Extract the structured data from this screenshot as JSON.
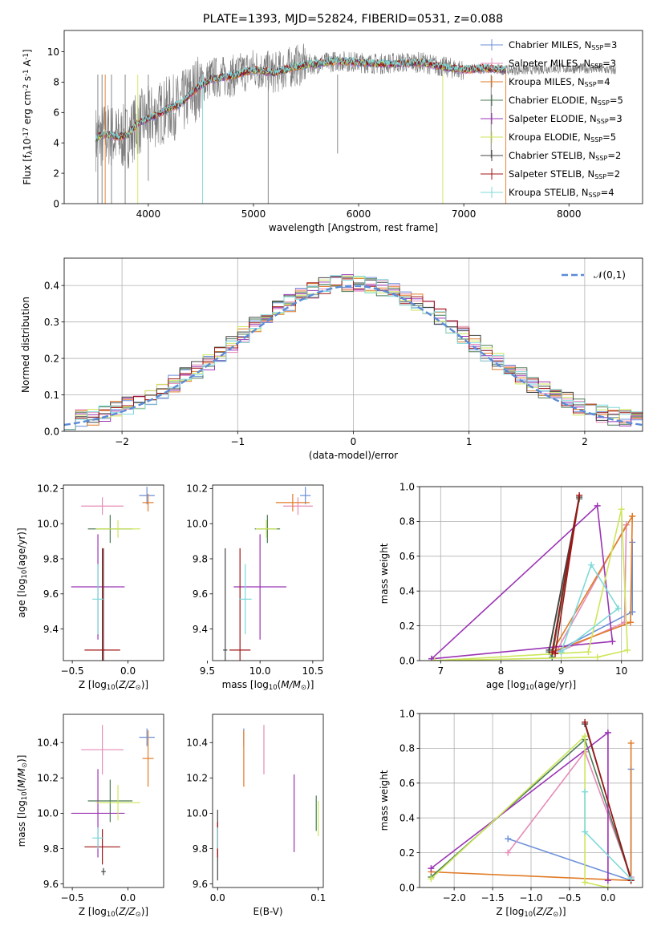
{
  "figure_title": "PLATE=1393, MJD=52824, FIBERID=0531, z=0.088",
  "colors": {
    "chabrier_miles": "#6a8fd9",
    "salpeter_miles": "#e68cb8",
    "kroupa_miles": "#e07b27",
    "chabrier_elodie": "#4a7a55",
    "salpeter_elodie": "#9b34b4",
    "kroupa_elodie": "#cde65a",
    "chabrier_stelib": "#444444",
    "salpeter_stelib": "#a01414",
    "kroupa_stelib": "#7fd9d9",
    "gaussian": "#5b8bd8",
    "data_spectrum": "#7a7a7a"
  },
  "legend_models": [
    "Chabrier MILES, N$_{SSP}$=3",
    "Salpeter MILES, N$_{SSP}$=3",
    "Kroupa MILES, N$_{SSP}$=4",
    "Chabrier ELODIE, N$_{SSP}$=5",
    "Salpeter ELODIE, N$_{SSP}$=3",
    "Kroupa ELODIE, N$_{SSP}$=5",
    "Chabrier STELIB, N$_{SSP}$=2",
    "Salpeter STELIB, N$_{SSP}$=2",
    "Kroupa STELIB, N$_{SSP}$=4"
  ],
  "chart_data": [
    {
      "id": "spectrum",
      "type": "line",
      "title": "PLATE=1393, MJD=52824, FIBERID=0531, z=0.088",
      "xlabel": "wavelength [Angstrom, rest frame]",
      "ylabel": "Flux [f$_\\lambda$10$^{-17}$ erg cm$^{-2}$ s$^{-1}$ A$^{-1}$]",
      "xlim": [
        3200,
        8700
      ],
      "ylim": [
        0,
        11.4
      ],
      "xticks": [
        4000,
        5000,
        6000,
        7000,
        8000
      ],
      "yticks": [
        0,
        2,
        4,
        6,
        8,
        10
      ],
      "legend_position": "upper right",
      "grid": false,
      "data_continuum": {
        "x": [
          3500,
          3600,
          3700,
          3800,
          3900,
          4000,
          4100,
          4200,
          4300,
          4400,
          4500,
          4600,
          4800,
          5000,
          5200,
          5400,
          5600,
          5800,
          6000,
          6200,
          6400,
          6600,
          6800,
          7000,
          7200,
          7400,
          7600,
          7800,
          8000,
          8200,
          8400
        ],
        "y": [
          4.3,
          4.6,
          4.3,
          4.4,
          5.3,
          5.6,
          5.9,
          6.3,
          6.4,
          7.2,
          7.9,
          8.3,
          8.4,
          8.9,
          8.6,
          9.1,
          9.2,
          9.4,
          9.3,
          9.2,
          9.3,
          9.3,
          9.0,
          8.8,
          8.9,
          8.8,
          8.8,
          8.9,
          8.9,
          8.9,
          8.8
        ]
      },
      "model_continuum": {
        "x": [
          3500,
          3600,
          3700,
          3800,
          3900,
          4000,
          4100,
          4200,
          4300,
          4400,
          4500,
          4600,
          4800,
          5000,
          5200,
          5400,
          5600,
          5800,
          6000,
          6200,
          6400,
          6600,
          6800,
          7000,
          7200,
          7400
        ],
        "y": [
          4.3,
          4.6,
          4.4,
          4.5,
          5.3,
          5.6,
          5.9,
          6.3,
          6.5,
          7.2,
          7.8,
          8.2,
          8.4,
          8.8,
          8.6,
          9.0,
          9.2,
          9.4,
          9.3,
          9.2,
          9.2,
          9.3,
          9.0,
          8.8,
          8.9,
          8.8
        ]
      },
      "spikes": [
        {
          "x": 3520,
          "y": 0,
          "color": "#7a7a7a"
        },
        {
          "x": 3560,
          "y": 0,
          "color": "#7a7a7a"
        },
        {
          "x": 3590,
          "y": 0,
          "color": "#e07b27"
        },
        {
          "x": 3650,
          "y": 0,
          "color": "#7a7a7a"
        },
        {
          "x": 3780,
          "y": 0,
          "color": "#7a7a7a"
        },
        {
          "x": 3900,
          "y": 0,
          "color": "#cde65a"
        },
        {
          "x": 4000,
          "y": 1.5,
          "color": "#7a7a7a"
        },
        {
          "x": 4516,
          "y": 0,
          "color": "#7fd9d9"
        },
        {
          "x": 5140,
          "y": 0,
          "color": "#7a7a7a"
        },
        {
          "x": 5800,
          "y": 3.3,
          "color": "#7a7a7a"
        },
        {
          "x": 6800,
          "y": 0,
          "color": "#cde65a"
        },
        {
          "x": 7260,
          "y": 3.0,
          "color": "#7a7a7a"
        },
        {
          "x": 7400,
          "y": 0,
          "color": "#e07b27"
        }
      ]
    },
    {
      "id": "residuals",
      "type": "histogram",
      "xlabel": "(data-model)/error",
      "ylabel": "Normed distribution",
      "xlim": [
        -2.5,
        2.5
      ],
      "ylim": [
        0,
        0.475
      ],
      "xticks": [
        -2,
        -1,
        0,
        1,
        2
      ],
      "yticks": [
        0.0,
        0.1,
        0.2,
        0.3,
        0.4
      ],
      "grid": true,
      "legend_position": "upper right",
      "reference_curve": {
        "name": "$\\mathcal{N}(0,1)$",
        "mean": 0,
        "sigma": 1
      },
      "bin_width": 0.1,
      "bin_start": -2.5,
      "base_values": [
        0.021,
        0.024,
        0.028,
        0.033,
        0.038,
        0.044,
        0.051,
        0.06,
        0.068,
        0.081,
        0.091,
        0.105,
        0.116,
        0.132,
        0.151,
        0.175,
        0.185,
        0.21,
        0.228,
        0.248,
        0.262,
        0.281,
        0.297,
        0.324,
        0.325,
        0.349,
        0.354,
        0.368,
        0.379,
        0.387,
        0.4,
        0.391,
        0.401,
        0.41,
        0.396,
        0.405,
        0.401,
        0.391,
        0.366,
        0.359,
        0.35,
        0.325,
        0.316,
        0.3,
        0.279,
        0.263,
        0.247,
        0.231,
        0.212,
        0.191,
        0.177,
        0.16,
        0.146,
        0.13,
        0.115,
        0.102,
        0.092,
        0.08,
        0.07,
        0.061,
        0.052,
        0.046,
        0.04,
        0.034,
        0.03,
        0.026,
        0.023,
        0.02,
        0.018,
        0.016,
        0.015,
        0.013,
        0.012,
        0.011,
        0.01,
        0.009,
        0.008,
        0.008,
        0.007,
        0.007,
        0.006,
        0.006,
        0.005,
        0.005,
        0.005,
        0.004,
        0.004,
        0.004,
        0.004,
        0.003,
        0.003,
        0.003,
        0.003,
        0.003,
        0.003,
        0.003,
        0.003,
        0.003,
        0.003,
        0.003
      ]
    },
    {
      "id": "age_vs_Z",
      "type": "errorbar",
      "xlabel": "Z [log$_{10}$($Z/Z_\\odot$)]",
      "ylabel": "age  [log$_{10}$($age/yr$)]",
      "xlim": [
        -0.58,
        0.32
      ],
      "ylim": [
        9.22,
        10.22
      ],
      "xticks": [
        -0.5,
        0.0
      ],
      "yticks": [
        9.4,
        9.6,
        9.8,
        10.0,
        10.2
      ],
      "grid": false,
      "points": [
        {
          "model": 0,
          "x": 0.17,
          "y": 10.16,
          "xerr": 0.07,
          "yerr": 0.05
        },
        {
          "model": 1,
          "x": -0.23,
          "y": 10.1,
          "xerr": 0.19,
          "yerr": 0.05
        },
        {
          "model": 2,
          "x": 0.18,
          "y": 10.12,
          "xerr": 0.05,
          "yerr": 0.05
        },
        {
          "model": 3,
          "x": -0.16,
          "y": 9.97,
          "xerr": 0.2,
          "yerr": 0.08
        },
        {
          "model": 4,
          "x": -0.27,
          "y": 9.64,
          "xerr": 0.24,
          "yerr": 0.3
        },
        {
          "model": 5,
          "x": -0.09,
          "y": 9.97,
          "xerr": 0.2,
          "yerr": 0.05
        },
        {
          "model": 6,
          "x": -0.22,
          "y": 9.28,
          "xerr": 0.02,
          "yerr": 0.58
        },
        {
          "model": 7,
          "x": -0.23,
          "y": 9.28,
          "xerr": 0.16,
          "yerr": 0.58
        },
        {
          "model": 8,
          "x": -0.27,
          "y": 9.57,
          "xerr": 0.05,
          "yerr": 0.2
        }
      ]
    },
    {
      "id": "age_vs_mass",
      "type": "errorbar",
      "xlabel": "mass [log$_{10}$($M/M_\\odot$)]",
      "ylabel": "",
      "xlim": [
        9.55,
        10.6
      ],
      "ylim": [
        9.22,
        10.22
      ],
      "xticks": [
        9.5,
        10.0,
        10.5
      ],
      "yticks": [
        9.4,
        9.6,
        9.8,
        10.0,
        10.2
      ],
      "grid": false,
      "points": [
        {
          "model": 0,
          "x": 10.43,
          "y": 10.16,
          "xerr": 0.05,
          "yerr": 0.05
        },
        {
          "model": 1,
          "x": 10.36,
          "y": 10.1,
          "xerr": 0.14,
          "yerr": 0.05
        },
        {
          "model": 2,
          "x": 10.31,
          "y": 10.12,
          "xerr": 0.16,
          "yerr": 0.05
        },
        {
          "model": 3,
          "x": 10.07,
          "y": 9.97,
          "xerr": 0.12,
          "yerr": 0.08
        },
        {
          "model": 4,
          "x": 10.0,
          "y": 9.64,
          "xerr": 0.25,
          "yerr": 0.3
        },
        {
          "model": 5,
          "x": 10.06,
          "y": 9.97,
          "xerr": 0.1,
          "yerr": 0.05
        },
        {
          "model": 6,
          "x": 9.67,
          "y": 9.28,
          "xerr": 0.02,
          "yerr": 0.58
        },
        {
          "model": 7,
          "x": 9.81,
          "y": 9.28,
          "xerr": 0.1,
          "yerr": 0.58
        },
        {
          "model": 8,
          "x": 9.86,
          "y": 9.57,
          "xerr": 0.06,
          "yerr": 0.2
        }
      ]
    },
    {
      "id": "weight_vs_age",
      "type": "line",
      "xlabel": "age  [log$_{10}$($age/yr$)]",
      "ylabel": "mass weight",
      "xlim": [
        6.65,
        10.35
      ],
      "ylim": [
        0,
        1.0
      ],
      "xticks": [
        7,
        8,
        9,
        10
      ],
      "yticks": [
        0.0,
        0.2,
        0.4,
        0.6,
        0.8,
        1.0
      ],
      "grid": true,
      "series": [
        {
          "model": 0,
          "x": [
            10.18,
            10.18,
            8.95,
            10.18
          ],
          "y": [
            0.68,
            0.28,
            0.06,
            0.28
          ]
        },
        {
          "model": 1,
          "x": [
            10.08,
            10.05,
            8.9,
            10.08
          ],
          "y": [
            0.78,
            0.22,
            0.04,
            0.78
          ]
        },
        {
          "model": 2,
          "x": [
            10.18,
            10.15,
            8.85,
            10.18
          ],
          "y": [
            0.83,
            0.22,
            0.05,
            0.83
          ]
        },
        {
          "model": 3,
          "x": [
            8.8,
            9.3,
            8.85,
            8.8
          ],
          "y": [
            0.05,
            0.93,
            0.02,
            0.05
          ]
        },
        {
          "model": 4,
          "x": [
            6.85,
            9.6,
            9.85,
            6.85
          ],
          "y": [
            0.01,
            0.89,
            0.11,
            0.01
          ]
        },
        {
          "model": 5,
          "x": [
            6.9,
            9.45,
            10.0,
            10.1,
            9.6,
            6.9
          ],
          "y": [
            0.0,
            0.05,
            0.87,
            0.06,
            0.02,
            0.0
          ]
        },
        {
          "model": 6,
          "x": [
            8.8,
            9.3,
            8.85
          ],
          "y": [
            0.06,
            0.94,
            0.05
          ]
        },
        {
          "model": 7,
          "x": [
            8.85,
            9.3,
            8.9
          ],
          "y": [
            0.05,
            0.95,
            0.04
          ]
        },
        {
          "model": 8,
          "x": [
            9.0,
            9.5,
            9.95,
            9.0
          ],
          "y": [
            0.05,
            0.55,
            0.3,
            0.05
          ]
        }
      ]
    },
    {
      "id": "mass_vs_Z",
      "type": "errorbar",
      "xlabel": "Z [log$_{10}$($Z/Z_\\odot$)]",
      "ylabel": "mass [log$_{10}$($M/M_\\odot$)]",
      "xlim": [
        -0.58,
        0.32
      ],
      "ylim": [
        9.58,
        10.56
      ],
      "xticks": [
        -0.5,
        0.0
      ],
      "yticks": [
        9.6,
        9.8,
        10.0,
        10.2,
        10.4
      ],
      "grid": false,
      "points": [
        {
          "model": 0,
          "x": 0.17,
          "y": 10.43,
          "xerr": 0.07,
          "yerr": 0.05
        },
        {
          "model": 1,
          "x": -0.23,
          "y": 10.36,
          "xerr": 0.19,
          "yerr": 0.14
        },
        {
          "model": 2,
          "x": 0.18,
          "y": 10.31,
          "xerr": 0.05,
          "yerr": 0.16
        },
        {
          "model": 3,
          "x": -0.16,
          "y": 10.07,
          "xerr": 0.2,
          "yerr": 0.12
        },
        {
          "model": 4,
          "x": -0.27,
          "y": 10.0,
          "xerr": 0.24,
          "yerr": 0.25
        },
        {
          "model": 5,
          "x": -0.09,
          "y": 10.06,
          "xerr": 0.2,
          "yerr": 0.1
        },
        {
          "model": 6,
          "x": -0.22,
          "y": 9.67,
          "xerr": 0.02,
          "yerr": 0.02
        },
        {
          "model": 7,
          "x": -0.23,
          "y": 9.81,
          "xerr": 0.16,
          "yerr": 0.1
        },
        {
          "model": 8,
          "x": -0.27,
          "y": 9.86,
          "xerr": 0.05,
          "yerr": 0.06
        }
      ]
    },
    {
      "id": "mass_vs_ebv",
      "type": "errorbar",
      "xlabel": "E(B-V)",
      "ylabel": "",
      "xlim": [
        -0.005,
        0.105
      ],
      "ylim": [
        9.58,
        10.56
      ],
      "xticks": [
        0.0,
        0.1
      ],
      "yticks": [
        9.6,
        9.8,
        10.0,
        10.2,
        10.4
      ],
      "grid": false,
      "points": [
        {
          "model": 0,
          "x": 0.026,
          "y": 10.43,
          "xerr": 0,
          "yerr": 0.05
        },
        {
          "model": 1,
          "x": 0.046,
          "y": 10.36,
          "xerr": 0,
          "yerr": 0.14
        },
        {
          "model": 2,
          "x": 0.026,
          "y": 10.31,
          "xerr": 0,
          "yerr": 0.16
        },
        {
          "model": 3,
          "x": 0.098,
          "y": 10.0,
          "xerr": 0,
          "yerr": 0.1
        },
        {
          "model": 4,
          "x": 0.076,
          "y": 10.0,
          "xerr": 0,
          "yerr": 0.22
        },
        {
          "model": 5,
          "x": 0.1,
          "y": 9.97,
          "xerr": 0,
          "yerr": 0.1
        },
        {
          "model": 6,
          "x": 0.0,
          "y": 9.82,
          "xerr": 0,
          "yerr": 0.2
        },
        {
          "model": 7,
          "x": 0.0,
          "y": 9.85,
          "xerr": 0,
          "yerr": 0.1
        },
        {
          "model": 8,
          "x": 0.0,
          "y": 9.86,
          "xerr": 0,
          "yerr": 0.06
        }
      ]
    },
    {
      "id": "weight_vs_Z",
      "type": "line",
      "xlabel": "Z [log$_{10}$($Z/Z_\\odot$)]",
      "ylabel": "mass weight",
      "xlim": [
        -2.45,
        0.45
      ],
      "ylim": [
        0,
        1.0
      ],
      "xticks": [
        -2.0,
        -1.5,
        -1.0,
        -0.5,
        0.0
      ],
      "yticks": [
        0.0,
        0.2,
        0.4,
        0.6,
        0.8,
        1.0
      ],
      "grid": true,
      "series": [
        {
          "model": 0,
          "x": [
            0.3,
            0.3,
            -1.3,
            0.3
          ],
          "y": [
            0.68,
            0.04,
            0.28,
            0.04
          ]
        },
        {
          "model": 1,
          "x": [
            -1.3,
            -0.3,
            0.3
          ],
          "y": [
            0.2,
            0.78,
            0.06
          ]
        },
        {
          "model": 2,
          "x": [
            0.3,
            0.3,
            -2.3,
            0.3
          ],
          "y": [
            0.83,
            0.04,
            0.09,
            0.04
          ]
        },
        {
          "model": 3,
          "x": [
            -2.3,
            -0.3,
            0.3
          ],
          "y": [
            0.06,
            0.85,
            0.05
          ]
        },
        {
          "model": 4,
          "x": [
            -2.3,
            0.0,
            0.0
          ],
          "y": [
            0.11,
            0.89,
            0.04
          ]
        },
        {
          "model": 5,
          "x": [
            -2.3,
            -0.3,
            -0.3,
            0.0
          ],
          "y": [
            0.05,
            0.87,
            0.03,
            0.0
          ]
        },
        {
          "model": 6,
          "x": [
            -0.3,
            0.3
          ],
          "y": [
            0.94,
            0.05
          ]
        },
        {
          "model": 7,
          "x": [
            -0.3,
            0.3
          ],
          "y": [
            0.95,
            0.04
          ]
        },
        {
          "model": 8,
          "x": [
            -0.3,
            -0.3,
            0.3
          ],
          "y": [
            0.55,
            0.32,
            0.05
          ]
        }
      ]
    }
  ]
}
